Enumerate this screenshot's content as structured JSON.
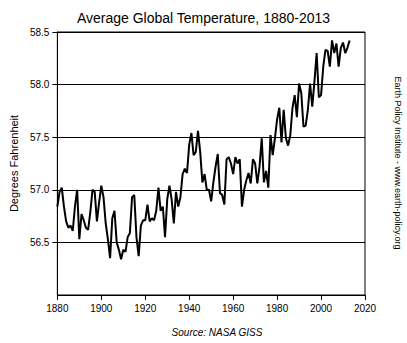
{
  "chart_data": {
    "type": "line",
    "title": "Average Global Temperature, 1880-2013",
    "y_label": "Degrees Fahrenheit",
    "source": "Source: NASA GISS",
    "credit": "Earth Policy Institute - www.earth-policy.org",
    "color": "#000000",
    "grid": true,
    "xlim": [
      1880,
      2020
    ],
    "xticks": [
      1880,
      1900,
      1920,
      1940,
      1960,
      1980,
      2000,
      2020
    ],
    "ylim": [
      56.0,
      58.5
    ],
    "yticks": [
      {
        "value": 56.5,
        "label": "56.5"
      },
      {
        "value": 57,
        "label": "57.0"
      },
      {
        "value": 57.5,
        "label": "57.5"
      },
      {
        "value": 58,
        "label": "58.0"
      },
      {
        "value": 58.5,
        "label": "58.5"
      }
    ],
    "x": [
      1880,
      1881,
      1882,
      1883,
      1884,
      1885,
      1886,
      1887,
      1888,
      1889,
      1890,
      1891,
      1892,
      1893,
      1894,
      1895,
      1896,
      1897,
      1898,
      1899,
      1900,
      1901,
      1902,
      1903,
      1904,
      1905,
      1906,
      1907,
      1908,
      1909,
      1910,
      1911,
      1912,
      1913,
      1914,
      1915,
      1916,
      1917,
      1918,
      1919,
      1920,
      1921,
      1922,
      1923,
      1924,
      1925,
      1926,
      1927,
      1928,
      1929,
      1930,
      1931,
      1932,
      1933,
      1934,
      1935,
      1936,
      1937,
      1938,
      1939,
      1940,
      1941,
      1942,
      1943,
      1944,
      1945,
      1946,
      1947,
      1948,
      1949,
      1950,
      1951,
      1952,
      1953,
      1954,
      1955,
      1956,
      1957,
      1958,
      1959,
      1960,
      1961,
      1962,
      1963,
      1964,
      1965,
      1966,
      1967,
      1968,
      1969,
      1970,
      1971,
      1972,
      1973,
      1974,
      1975,
      1976,
      1977,
      1978,
      1979,
      1980,
      1981,
      1982,
      1983,
      1984,
      1985,
      1986,
      1987,
      1988,
      1989,
      1990,
      1991,
      1992,
      1993,
      1994,
      1995,
      1996,
      1997,
      1998,
      1999,
      2000,
      2001,
      2002,
      2003,
      2004,
      2005,
      2006,
      2007,
      2008,
      2009,
      2010,
      2011,
      2012,
      2013
    ],
    "values": [
      56.84,
      56.98,
      57.02,
      56.84,
      56.7,
      56.64,
      56.66,
      56.61,
      56.84,
      57.0,
      56.53,
      56.77,
      56.71,
      56.64,
      56.62,
      56.79,
      57.0,
      56.98,
      56.7,
      56.88,
      57.04,
      56.93,
      56.68,
      56.53,
      56.35,
      56.73,
      56.8,
      56.5,
      56.43,
      56.34,
      56.43,
      56.41,
      56.55,
      56.59,
      56.93,
      56.95,
      56.55,
      56.37,
      56.66,
      56.71,
      56.71,
      56.86,
      56.7,
      56.73,
      56.71,
      56.8,
      57.02,
      56.8,
      56.84,
      56.55,
      56.91,
      57.04,
      56.91,
      56.68,
      56.98,
      56.84,
      56.93,
      57.15,
      57.2,
      57.16,
      57.43,
      57.54,
      57.33,
      57.36,
      57.56,
      57.36,
      57.07,
      57.15,
      57.0,
      57.0,
      56.89,
      57.07,
      57.22,
      57.34,
      56.97,
      56.95,
      56.86,
      57.29,
      57.31,
      57.25,
      57.15,
      57.31,
      57.25,
      57.29,
      56.84,
      57.0,
      57.09,
      57.16,
      57.06,
      57.29,
      57.25,
      57.06,
      57.22,
      57.49,
      57.07,
      57.18,
      57.02,
      57.52,
      57.33,
      57.49,
      57.67,
      57.78,
      57.45,
      57.76,
      57.49,
      57.42,
      57.52,
      57.78,
      57.9,
      57.69,
      58.01,
      57.92,
      57.6,
      57.61,
      57.76,
      58.01,
      57.79,
      58.03,
      58.3,
      57.88,
      57.9,
      58.17,
      58.33,
      58.32,
      58.17,
      58.42,
      58.3,
      58.39,
      58.17,
      58.35,
      58.4,
      58.3,
      58.35,
      58.42
    ]
  }
}
